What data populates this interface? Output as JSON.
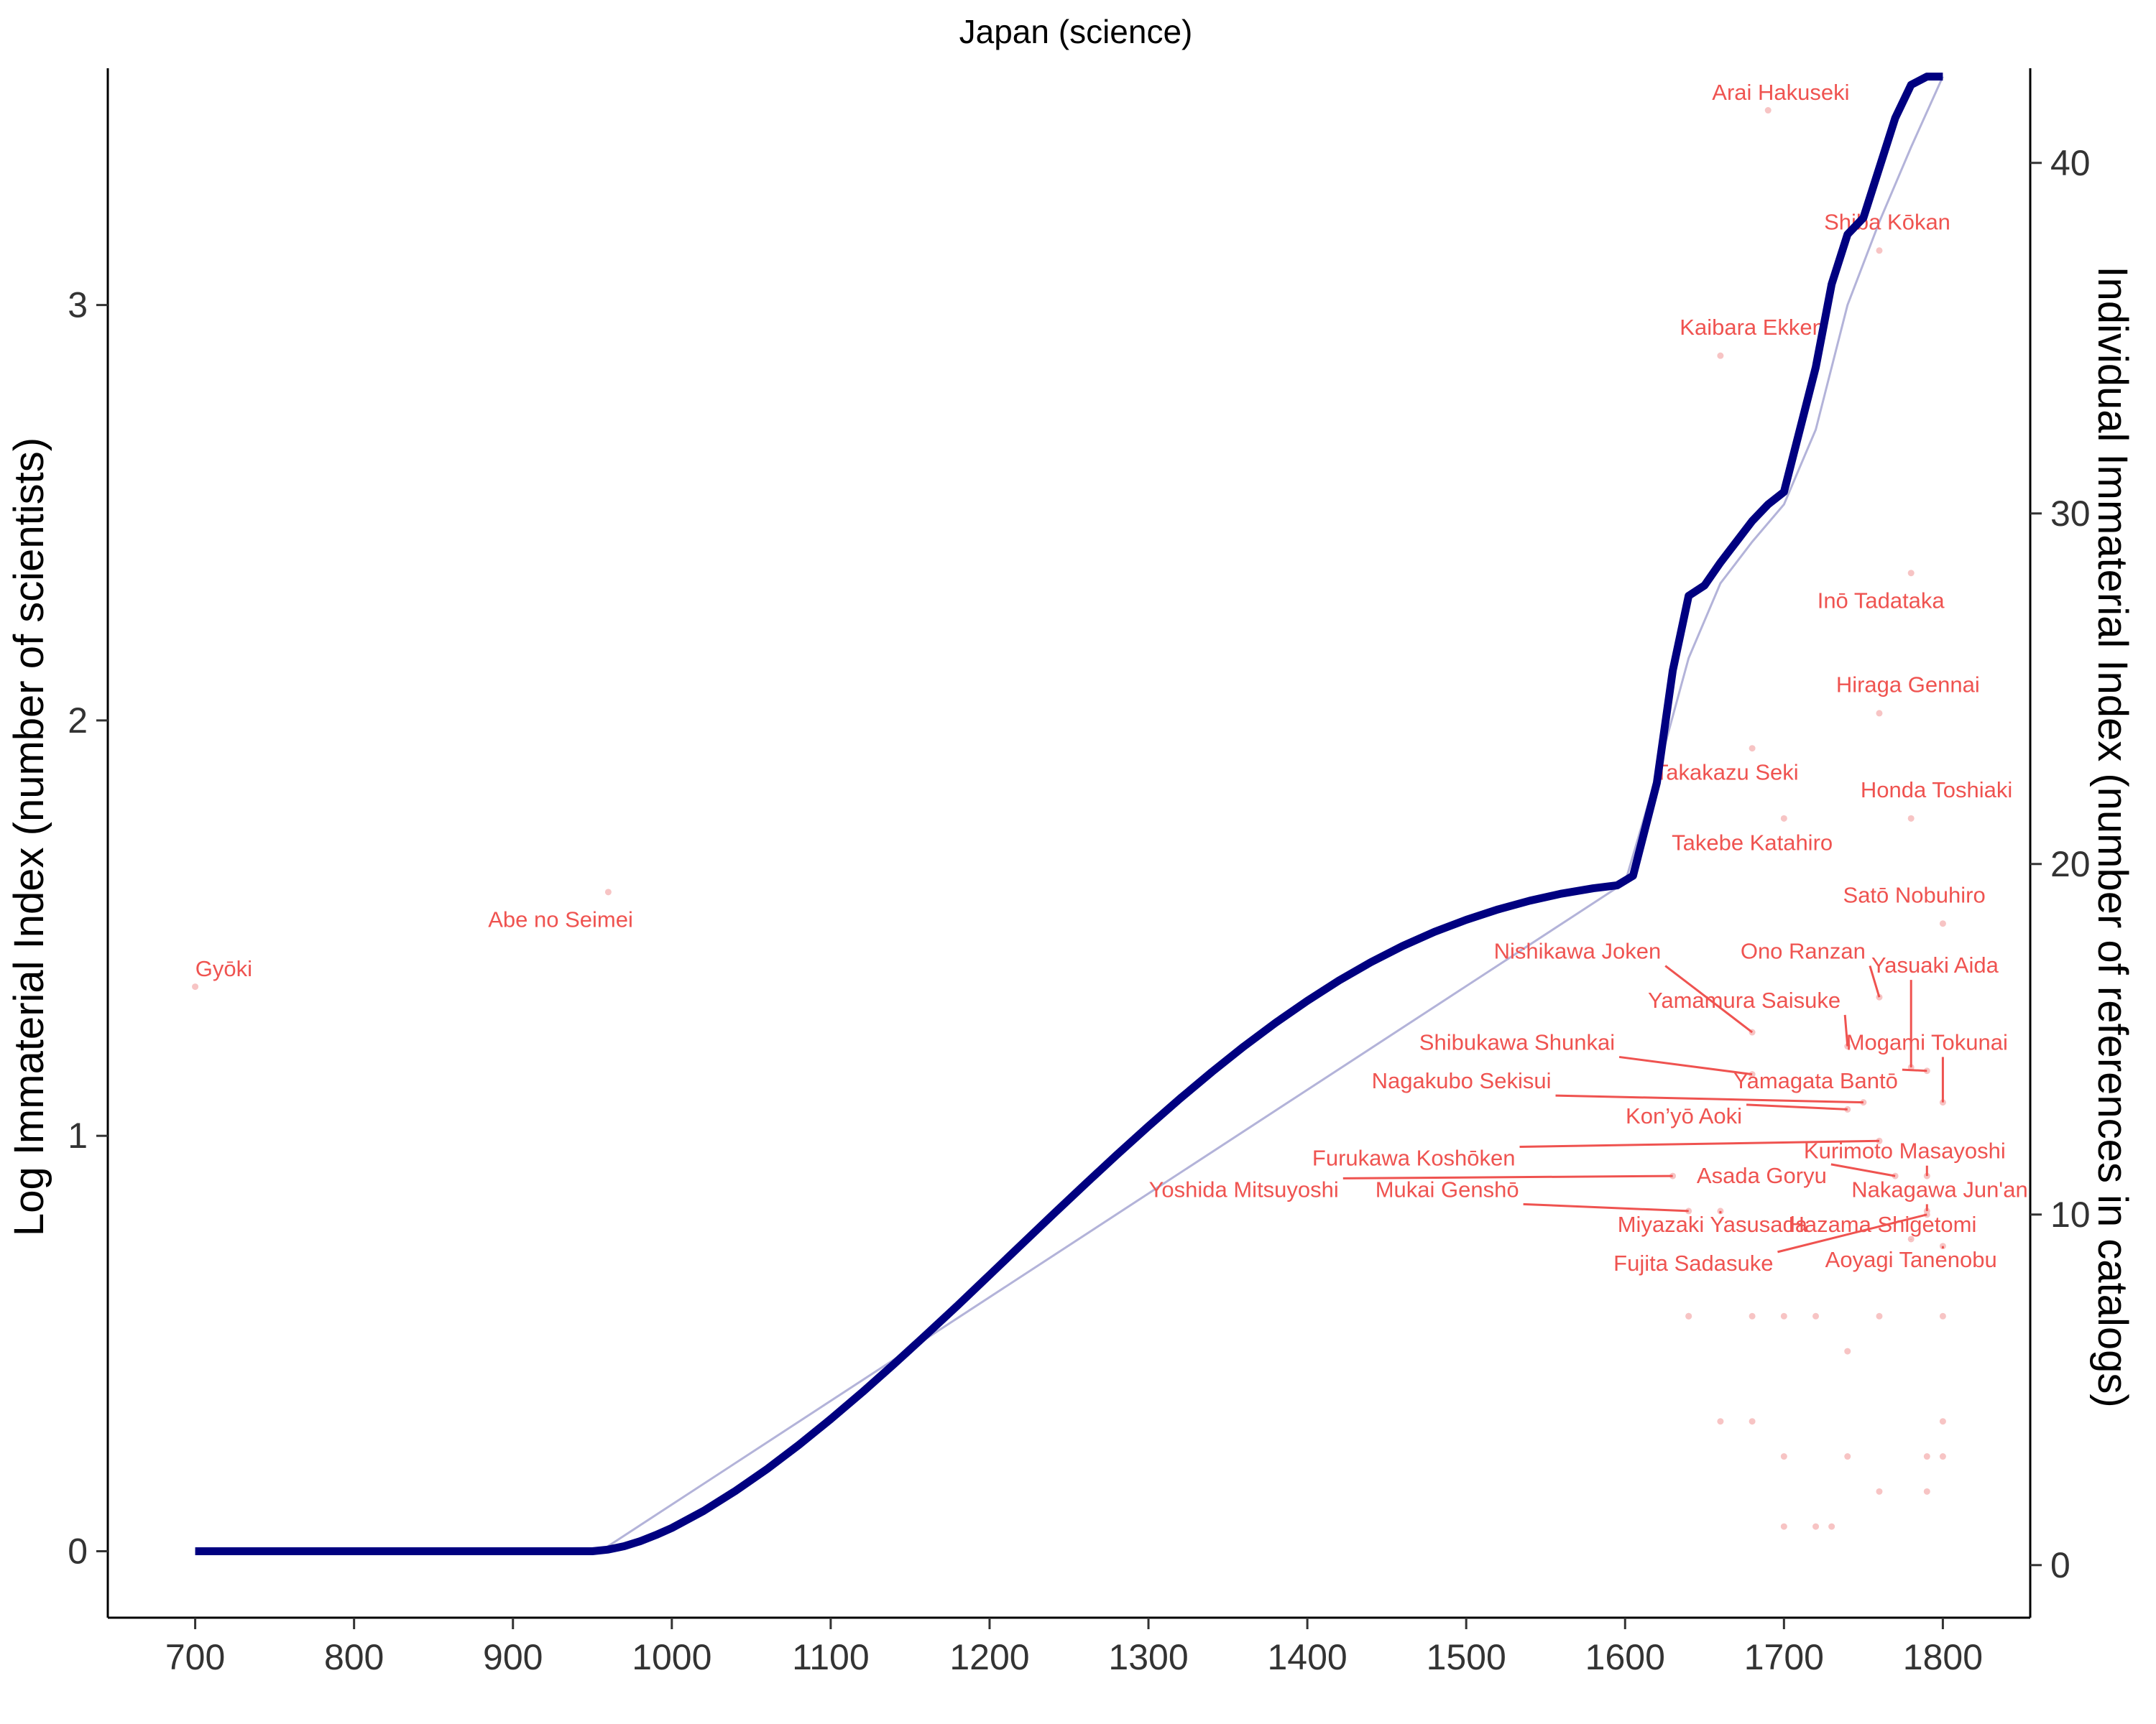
{
  "chart_data": {
    "type": "line",
    "title": "Japan (science)",
    "xlabel": "",
    "ylabel": "Log Immaterial Index (number of scientists)",
    "y2label": "Individual Immaterial Index (number of references in catalogs)",
    "xlim": [
      645,
      1855
    ],
    "ylim": [
      -0.16,
      3.57
    ],
    "y2lim": [
      -1.5,
      42.7
    ],
    "xticks": [
      700,
      800,
      900,
      1000,
      1100,
      1200,
      1300,
      1400,
      1500,
      1600,
      1700,
      1800
    ],
    "yticks": [
      0,
      1,
      2,
      3
    ],
    "y2ticks": [
      0,
      10,
      20,
      30,
      40
    ],
    "grid": false,
    "legend": "none",
    "colors": {
      "smooth": "#000080",
      "raw": "#b3b3d9",
      "labels": "#ef5350",
      "points": "#f7c4c4"
    },
    "series": [
      {
        "role": "smoothed",
        "x": [
          700,
          950,
          960,
          970,
          980,
          990,
          1000,
          1020,
          1040,
          1060,
          1080,
          1100,
          1120,
          1140,
          1160,
          1180,
          1200,
          1220,
          1240,
          1260,
          1280,
          1300,
          1320,
          1340,
          1360,
          1380,
          1400,
          1420,
          1440,
          1460,
          1480,
          1500,
          1520,
          1540,
          1560,
          1580,
          1595,
          1605,
          1620,
          1630,
          1640,
          1650,
          1660,
          1670,
          1680,
          1690,
          1700,
          1710,
          1720,
          1730,
          1740,
          1750,
          1760,
          1770,
          1780,
          1790,
          1800
        ],
        "y": [
          0,
          0,
          0.004,
          0.012,
          0.024,
          0.039,
          0.056,
          0.097,
          0.145,
          0.198,
          0.256,
          0.318,
          0.383,
          0.451,
          0.521,
          0.592,
          0.665,
          0.738,
          0.811,
          0.883,
          0.954,
          1.023,
          1.09,
          1.154,
          1.215,
          1.272,
          1.325,
          1.374,
          1.418,
          1.457,
          1.491,
          1.52,
          1.545,
          1.566,
          1.583,
          1.596,
          1.603,
          1.626,
          1.85,
          2.12,
          2.3,
          2.325,
          2.38,
          2.43,
          2.48,
          2.52,
          2.55,
          2.7,
          2.85,
          3.05,
          3.17,
          3.21,
          3.33,
          3.45,
          3.53,
          3.55,
          3.55
        ]
      },
      {
        "role": "raw",
        "x": [
          700,
          955,
          1600,
          1620,
          1640,
          1660,
          1680,
          1700,
          1720,
          1740,
          1760,
          1780,
          1800
        ],
        "y": [
          0,
          0,
          1.61,
          1.87,
          2.15,
          2.33,
          2.43,
          2.52,
          2.7,
          3.0,
          3.2,
          3.38,
          3.55
        ]
      }
    ],
    "points": [
      {
        "name": "Gyōki",
        "x": 700,
        "y": 16.5
      },
      {
        "name": "Abe no Seimei",
        "x": 960,
        "y": 19.2
      },
      {
        "name": "Arai Hakuseki",
        "x": 1690,
        "y": 41.5
      },
      {
        "name": "Shiba Kōkan",
        "x": 1760,
        "y": 37.5
      },
      {
        "name": "Kaibara Ekken",
        "x": 1660,
        "y": 34.5
      },
      {
        "name": "Inō Tadataka",
        "x": 1780,
        "y": 28.3
      },
      {
        "name": "Hiraga Gennai",
        "x": 1760,
        "y": 24.3
      },
      {
        "name": "Takakazu Seki",
        "x": 1680,
        "y": 23.3
      },
      {
        "name": "Honda Toshiaki",
        "x": 1780,
        "y": 21.3
      },
      {
        "name": "Takebe Katahiro",
        "x": 1700,
        "y": 21.3
      },
      {
        "name": "Satō Nobuhiro",
        "x": 1800,
        "y": 18.3
      },
      {
        "name": "Nishikawa Joken",
        "x": 1680,
        "y": 15.2
      },
      {
        "name": "Ono Ranzan",
        "x": 1760,
        "y": 16.2
      },
      {
        "name": "Yasuaki Aida",
        "x": 1780,
        "y": 14.2
      },
      {
        "name": "Yamamura Saisuke",
        "x": 1740,
        "y": 14.8
      },
      {
        "name": "Mogami Tokunai",
        "x": 1800,
        "y": 13.2
      },
      {
        "name": "Shibukawa Shunkai",
        "x": 1680,
        "y": 14.0
      },
      {
        "name": "Yamagata Bantō",
        "x": 1790,
        "y": 14.1
      },
      {
        "name": "Nagakubo Sekisui",
        "x": 1750,
        "y": 13.2
      },
      {
        "name": "Kon'yō Aoki",
        "x": 1740,
        "y": 13.0
      },
      {
        "name": "Furukawa Koshōken",
        "x": 1760,
        "y": 12.1
      },
      {
        "name": "Kurimoto Masayoshi",
        "x": 1790,
        "y": 11.1
      },
      {
        "name": "Yoshida Mitsuyoshi",
        "x": 1630,
        "y": 11.1
      },
      {
        "name": "Asada Goryu",
        "x": 1770,
        "y": 11.1
      },
      {
        "name": "Mukai Genshō",
        "x": 1640,
        "y": 10.1
      },
      {
        "name": "Nakagawa Jun'an",
        "x": 1790,
        "y": 10.1
      },
      {
        "name": "Miyazaki Yasusada",
        "x": 1660,
        "y": 10.1
      },
      {
        "name": "Hazama Shigetomi",
        "x": 1780,
        "y": 9.3
      },
      {
        "name": "Fujita Sadasuke",
        "x": 1790,
        "y": 10.0
      },
      {
        "name": "Aoyagi Tanenobu",
        "x": 1800,
        "y": 9.1
      }
    ],
    "unlabeled_points": [
      [
        1640,
        7.1
      ],
      [
        1640,
        7.1
      ],
      [
        1680,
        7.1
      ],
      [
        1700,
        7.1
      ],
      [
        1720,
        7.1
      ],
      [
        1760,
        7.1
      ],
      [
        1800,
        7.1
      ],
      [
        1740,
        6.1
      ],
      [
        1660,
        4.1
      ],
      [
        1680,
        4.1
      ],
      [
        1800,
        4.1
      ],
      [
        1700,
        3.1
      ],
      [
        1740,
        3.1
      ],
      [
        1790,
        3.1
      ],
      [
        1800,
        3.1
      ],
      [
        1760,
        2.1
      ],
      [
        1790,
        2.1
      ],
      [
        1700,
        1.1
      ],
      [
        1720,
        1.1
      ],
      [
        1730,
        1.1
      ]
    ],
    "annotations": [
      {
        "text": "Gyōki",
        "x": 718,
        "y": 16.8,
        "link": false
      },
      {
        "text": "Abe no Seimei",
        "x": 930,
        "y": 18.2,
        "link": false
      },
      {
        "text": "Arai Hakuseki",
        "x": 1698,
        "y": 41.8,
        "link": false
      },
      {
        "text": "Shiba Kōkan",
        "x": 1765,
        "y": 38.1,
        "link": false
      },
      {
        "text": "Kaibara Ekken",
        "x": 1680,
        "y": 35.1,
        "link": false
      },
      {
        "text": "Inō Tadataka",
        "x": 1761,
        "y": 27.3,
        "link": false
      },
      {
        "text": "Hiraga Gennai",
        "x": 1778,
        "y": 24.9,
        "link": false
      },
      {
        "text": "Takakazu Seki",
        "x": 1664,
        "y": 22.4,
        "link": false
      },
      {
        "text": "Honda Toshiaki",
        "x": 1796,
        "y": 21.9,
        "link": false
      },
      {
        "text": "Takebe Katahiro",
        "x": 1680,
        "y": 20.4,
        "link": false
      },
      {
        "text": "Satō Nobuhiro",
        "x": 1782,
        "y": 18.9,
        "link": false
      },
      {
        "text": "Nishikawa Joken",
        "x": 1570,
        "y": 17.3,
        "link": true
      },
      {
        "text": "Ono Ranzan",
        "x": 1712,
        "y": 17.3,
        "link": true
      },
      {
        "text": "Yasuaki Aida",
        "x": 1795,
        "y": 16.9,
        "link": true
      },
      {
        "text": "Yamamura Saisuke",
        "x": 1675,
        "y": 15.9,
        "link": true
      },
      {
        "text": "Mogami Tokunai",
        "x": 1790,
        "y": 14.7,
        "link": true
      },
      {
        "text": "Shibukawa Shunkai",
        "x": 1532,
        "y": 14.7,
        "link": true
      },
      {
        "text": "Yamagata Bantō",
        "x": 1720,
        "y": 13.6,
        "link": true
      },
      {
        "text": "Nagakubo Sekisui",
        "x": 1497,
        "y": 13.6,
        "link": true
      },
      {
        "text": "Kon’yō Aoki",
        "x": 1637,
        "y": 12.6,
        "link": true
      },
      {
        "text": "Furukawa Koshōken",
        "x": 1467,
        "y": 11.4,
        "link": true
      },
      {
        "text": "Kurimoto Masayoshi",
        "x": 1776,
        "y": 11.6,
        "link": true
      },
      {
        "text": "Yoshida Mitsuyoshi",
        "x": 1360,
        "y": 10.5,
        "link": true
      },
      {
        "text": "Asada Goryu",
        "x": 1686,
        "y": 10.9,
        "link": true
      },
      {
        "text": "Mukai Genshō",
        "x": 1488,
        "y": 10.5,
        "link": true
      },
      {
        "text": "Nakagawa Jun'an",
        "x": 1798,
        "y": 10.5,
        "link": true
      },
      {
        "text": "Miyazaki Yasusada",
        "x": 1655,
        "y": 9.5,
        "link": true
      },
      {
        "text": "Hazama Shigetomi",
        "x": 1762,
        "y": 9.5,
        "link": true
      },
      {
        "text": "Fujita Sadasuke",
        "x": 1643,
        "y": 8.4,
        "link": true
      },
      {
        "text": "Aoyagi Tanenobu",
        "x": 1780,
        "y": 8.5,
        "link": true
      }
    ]
  }
}
